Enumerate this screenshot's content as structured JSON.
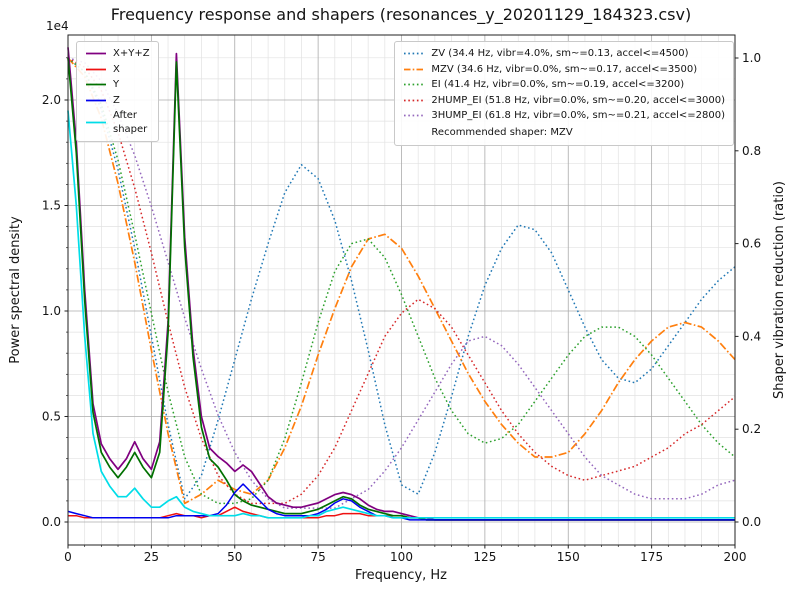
{
  "title": "Frequency response and shapers (resonances_y_20201129_184323.csv)",
  "axes": {
    "x_label": "Frequency, Hz",
    "y_left_label": "Power spectral density",
    "y_right_label": "Shaper vibration reduction (ratio)",
    "y_left_offset": "1e4",
    "x_ticks": [
      "0",
      "25",
      "50",
      "75",
      "100",
      "125",
      "150",
      "175",
      "200"
    ],
    "y_left_ticks": [
      "0.0",
      "0.5",
      "1.0",
      "1.5",
      "2.0"
    ],
    "y_right_ticks": [
      "0.0",
      "0.2",
      "0.4",
      "0.6",
      "0.8",
      "1.0"
    ]
  },
  "legend_psd": {
    "items": [
      {
        "label": "X+Y+Z",
        "color": "#800080",
        "dash": "solid"
      },
      {
        "label": "X",
        "color": "#ee1111",
        "dash": "solid"
      },
      {
        "label": "Y",
        "color": "#007000",
        "dash": "solid"
      },
      {
        "label": "Z",
        "color": "#0000ee",
        "dash": "solid"
      },
      {
        "label": "After\nshaper",
        "color": "#00dde8",
        "dash": "solid"
      }
    ]
  },
  "legend_shapers": {
    "items": [
      {
        "label": "ZV (34.4 Hz, vibr=4.0%, sm~=0.13, accel<=4500)",
        "color": "#1f77b4",
        "dash": "dotted"
      },
      {
        "label": "MZV (34.6 Hz, vibr=0.0%, sm~=0.17, accel<=3500)",
        "color": "#ff7f0e",
        "dash": "dashdot"
      },
      {
        "label": "EI (41.4 Hz, vibr=0.0%, sm~=0.19, accel<=3200)",
        "color": "#2ca02c",
        "dash": "dotted"
      },
      {
        "label": "2HUMP_EI (51.8 Hz, vibr=0.0%, sm~=0.20, accel<=3000)",
        "color": "#d62728",
        "dash": "dotted"
      },
      {
        "label": "3HUMP_EI (61.8 Hz, vibr=0.0%, sm~=0.21, accel<=2800)",
        "color": "#9467bd",
        "dash": "dotted"
      }
    ],
    "note": "Recommended shaper: MZV"
  },
  "chart_data": {
    "type": "line",
    "title": "Frequency response and shapers (resonances_y_20201129_184323.csv)",
    "xlabel": "Frequency, Hz",
    "ylabel_left": "Power spectral density (units of 1e4)",
    "ylabel_right": "Shaper vibration reduction (ratio)",
    "xlim": [
      0,
      200
    ],
    "ylim_left_1e4": [
      -0.13,
      2.3
    ],
    "ylim_right": [
      -0.06,
      1.06
    ],
    "grid": true,
    "legend_positions": [
      "upper left",
      "upper right"
    ],
    "series": [
      {
        "name": "ZV",
        "axis": "right",
        "color": "#1f77b4",
        "dash": "dotted",
        "width": 1.5,
        "x": [
          0,
          5,
          10,
          15,
          20,
          25,
          30,
          35,
          40,
          45,
          50,
          55,
          60,
          65,
          70,
          75,
          80,
          85,
          90,
          95,
          100,
          105,
          110,
          115,
          120,
          125,
          130,
          135,
          140,
          145,
          150,
          155,
          160,
          165,
          170,
          175,
          180,
          185,
          190,
          195,
          200
        ],
        "y": [
          1.0,
          0.97,
          0.89,
          0.76,
          0.59,
          0.4,
          0.21,
          0.05,
          0.1,
          0.22,
          0.35,
          0.48,
          0.6,
          0.71,
          0.77,
          0.74,
          0.65,
          0.52,
          0.37,
          0.21,
          0.08,
          0.06,
          0.15,
          0.27,
          0.4,
          0.51,
          0.59,
          0.64,
          0.63,
          0.58,
          0.5,
          0.42,
          0.35,
          0.31,
          0.3,
          0.33,
          0.38,
          0.43,
          0.48,
          0.52,
          0.55
        ]
      },
      {
        "name": "MZV",
        "axis": "right",
        "color": "#ff7f0e",
        "dash": "dashdot",
        "width": 1.7,
        "x": [
          0,
          5,
          10,
          15,
          20,
          25,
          30,
          35,
          40,
          45,
          50,
          55,
          60,
          65,
          70,
          75,
          80,
          85,
          90,
          95,
          100,
          105,
          110,
          115,
          120,
          125,
          130,
          135,
          140,
          145,
          150,
          155,
          160,
          165,
          170,
          175,
          180,
          185,
          190,
          195,
          200
        ],
        "y": [
          1.0,
          0.96,
          0.87,
          0.73,
          0.56,
          0.37,
          0.19,
          0.04,
          0.06,
          0.09,
          0.07,
          0.06,
          0.09,
          0.16,
          0.25,
          0.36,
          0.46,
          0.55,
          0.61,
          0.62,
          0.59,
          0.53,
          0.46,
          0.39,
          0.32,
          0.26,
          0.21,
          0.17,
          0.14,
          0.14,
          0.15,
          0.19,
          0.24,
          0.3,
          0.35,
          0.39,
          0.42,
          0.43,
          0.42,
          0.39,
          0.35
        ]
      },
      {
        "name": "EI",
        "axis": "right",
        "color": "#2ca02c",
        "dash": "dotted",
        "width": 1.5,
        "x": [
          0,
          5,
          10,
          15,
          20,
          25,
          30,
          35,
          40,
          45,
          50,
          55,
          60,
          65,
          70,
          75,
          80,
          85,
          90,
          95,
          100,
          105,
          110,
          115,
          120,
          125,
          130,
          135,
          140,
          145,
          150,
          155,
          160,
          165,
          170,
          175,
          180,
          185,
          190,
          195,
          200
        ],
        "y": [
          1.0,
          0.97,
          0.9,
          0.78,
          0.62,
          0.45,
          0.28,
          0.14,
          0.06,
          0.04,
          0.04,
          0.05,
          0.09,
          0.18,
          0.3,
          0.43,
          0.54,
          0.6,
          0.61,
          0.57,
          0.49,
          0.4,
          0.31,
          0.24,
          0.19,
          0.17,
          0.18,
          0.21,
          0.26,
          0.31,
          0.36,
          0.4,
          0.42,
          0.42,
          0.4,
          0.36,
          0.31,
          0.26,
          0.21,
          0.17,
          0.14
        ]
      },
      {
        "name": "2HUMP_EI",
        "axis": "right",
        "color": "#d62728",
        "dash": "dotted",
        "width": 1.5,
        "x": [
          0,
          5,
          10,
          15,
          20,
          25,
          30,
          35,
          40,
          45,
          50,
          55,
          60,
          65,
          70,
          75,
          80,
          85,
          90,
          95,
          100,
          105,
          110,
          115,
          120,
          125,
          130,
          135,
          140,
          145,
          150,
          155,
          160,
          165,
          170,
          175,
          180,
          185,
          190,
          195,
          200
        ],
        "y": [
          1.0,
          0.98,
          0.93,
          0.84,
          0.72,
          0.58,
          0.43,
          0.29,
          0.18,
          0.1,
          0.06,
          0.04,
          0.04,
          0.04,
          0.06,
          0.1,
          0.16,
          0.24,
          0.32,
          0.4,
          0.45,
          0.48,
          0.46,
          0.42,
          0.36,
          0.3,
          0.24,
          0.19,
          0.15,
          0.12,
          0.1,
          0.09,
          0.1,
          0.11,
          0.12,
          0.14,
          0.16,
          0.19,
          0.21,
          0.24,
          0.27
        ]
      },
      {
        "name": "3HUMP_EI",
        "axis": "right",
        "color": "#9467bd",
        "dash": "dotted",
        "width": 1.5,
        "x": [
          0,
          5,
          10,
          15,
          20,
          25,
          30,
          35,
          40,
          45,
          50,
          55,
          60,
          65,
          70,
          75,
          80,
          85,
          90,
          95,
          100,
          105,
          110,
          115,
          120,
          125,
          130,
          135,
          140,
          145,
          150,
          155,
          160,
          165,
          170,
          175,
          180,
          185,
          190,
          195,
          200
        ],
        "y": [
          1.0,
          0.99,
          0.95,
          0.88,
          0.79,
          0.68,
          0.56,
          0.44,
          0.33,
          0.23,
          0.15,
          0.09,
          0.05,
          0.03,
          0.03,
          0.03,
          0.03,
          0.05,
          0.07,
          0.11,
          0.16,
          0.22,
          0.28,
          0.34,
          0.39,
          0.4,
          0.38,
          0.34,
          0.29,
          0.24,
          0.19,
          0.14,
          0.1,
          0.08,
          0.06,
          0.05,
          0.05,
          0.05,
          0.06,
          0.08,
          0.09
        ]
      },
      {
        "name": "X+Y+Z",
        "axis": "left",
        "y_units": "1e4",
        "color": "#800080",
        "dash": "solid",
        "width": 1.7,
        "x": [
          0,
          2.5,
          5,
          7.5,
          10,
          12.5,
          15,
          17.5,
          20,
          22.5,
          25,
          27.5,
          30,
          32.5,
          35,
          37.5,
          40,
          42.5,
          45,
          47.5,
          50,
          52.5,
          55,
          57.5,
          60,
          62.5,
          65,
          67.5,
          70,
          72.5,
          75,
          77.5,
          80,
          82.5,
          85,
          87.5,
          90,
          92.5,
          95,
          97.5,
          100,
          102.5,
          105,
          107.5,
          110,
          120,
          140,
          160,
          180,
          200
        ],
        "y": [
          2.25,
          1.8,
          1.1,
          0.56,
          0.37,
          0.3,
          0.25,
          0.3,
          0.38,
          0.3,
          0.25,
          0.38,
          0.95,
          2.22,
          1.35,
          0.82,
          0.5,
          0.35,
          0.31,
          0.28,
          0.24,
          0.27,
          0.24,
          0.18,
          0.12,
          0.09,
          0.08,
          0.07,
          0.07,
          0.08,
          0.09,
          0.11,
          0.13,
          0.14,
          0.13,
          0.11,
          0.08,
          0.06,
          0.05,
          0.05,
          0.04,
          0.03,
          0.02,
          0.02,
          0.01,
          0.01,
          0.01,
          0.01,
          0.01,
          0.01
        ]
      },
      {
        "name": "X",
        "axis": "left",
        "y_units": "1e4",
        "color": "#ee1111",
        "dash": "solid",
        "width": 1.5,
        "x": [
          0,
          2.5,
          5,
          7.5,
          10,
          12.5,
          15,
          17.5,
          20,
          22.5,
          25,
          27.5,
          30,
          32.5,
          35,
          37.5,
          40,
          42.5,
          45,
          47.5,
          50,
          52.5,
          55,
          57.5,
          60,
          62.5,
          65,
          67.5,
          70,
          72.5,
          75,
          77.5,
          80,
          82.5,
          85,
          87.5,
          90,
          92.5,
          95,
          97.5,
          100,
          102.5,
          105,
          107.5,
          110,
          120,
          140,
          160,
          180,
          200
        ],
        "y": [
          0.03,
          0.03,
          0.02,
          0.02,
          0.02,
          0.02,
          0.02,
          0.02,
          0.02,
          0.02,
          0.02,
          0.02,
          0.03,
          0.04,
          0.03,
          0.03,
          0.02,
          0.03,
          0.03,
          0.05,
          0.07,
          0.05,
          0.04,
          0.03,
          0.02,
          0.02,
          0.02,
          0.02,
          0.02,
          0.02,
          0.02,
          0.03,
          0.03,
          0.04,
          0.04,
          0.04,
          0.03,
          0.03,
          0.03,
          0.03,
          0.03,
          0.02,
          0.02,
          0.01,
          0.01,
          0.01,
          0.01,
          0.01,
          0.01,
          0.01
        ]
      },
      {
        "name": "Y",
        "axis": "left",
        "y_units": "1e4",
        "color": "#007000",
        "dash": "solid",
        "width": 1.7,
        "x": [
          0,
          2.5,
          5,
          7.5,
          10,
          12.5,
          15,
          17.5,
          20,
          22.5,
          25,
          27.5,
          30,
          32.5,
          35,
          37.5,
          40,
          42.5,
          45,
          47.5,
          50,
          52.5,
          55,
          57.5,
          60,
          62.5,
          65,
          67.5,
          70,
          72.5,
          75,
          77.5,
          80,
          82.5,
          85,
          87.5,
          90,
          92.5,
          95,
          97.5,
          100,
          102.5,
          105,
          107.5,
          110,
          120,
          140,
          160,
          180,
          200
        ],
        "y": [
          2.2,
          1.75,
          1.05,
          0.52,
          0.33,
          0.26,
          0.21,
          0.26,
          0.33,
          0.26,
          0.21,
          0.33,
          0.9,
          2.18,
          1.3,
          0.78,
          0.45,
          0.3,
          0.26,
          0.2,
          0.13,
          0.1,
          0.08,
          0.07,
          0.06,
          0.05,
          0.04,
          0.04,
          0.04,
          0.05,
          0.06,
          0.08,
          0.1,
          0.12,
          0.11,
          0.08,
          0.06,
          0.05,
          0.04,
          0.03,
          0.03,
          0.02,
          0.02,
          0.01,
          0.01,
          0.01,
          0.01,
          0.01,
          0.01,
          0.01
        ]
      },
      {
        "name": "Z",
        "axis": "left",
        "y_units": "1e4",
        "color": "#0000ee",
        "dash": "solid",
        "width": 1.5,
        "x": [
          0,
          2.5,
          5,
          7.5,
          10,
          12.5,
          15,
          17.5,
          20,
          22.5,
          25,
          27.5,
          30,
          32.5,
          35,
          37.5,
          40,
          42.5,
          45,
          47.5,
          50,
          52.5,
          55,
          57.5,
          60,
          62.5,
          65,
          67.5,
          70,
          72.5,
          75,
          77.5,
          80,
          82.5,
          85,
          87.5,
          90,
          92.5,
          95,
          97.5,
          100,
          102.5,
          105,
          107.5,
          110,
          120,
          140,
          160,
          180,
          200
        ],
        "y": [
          0.05,
          0.04,
          0.03,
          0.02,
          0.02,
          0.02,
          0.02,
          0.02,
          0.02,
          0.02,
          0.02,
          0.02,
          0.02,
          0.03,
          0.03,
          0.03,
          0.03,
          0.03,
          0.04,
          0.08,
          0.14,
          0.18,
          0.14,
          0.1,
          0.06,
          0.04,
          0.03,
          0.03,
          0.03,
          0.03,
          0.04,
          0.06,
          0.09,
          0.11,
          0.1,
          0.07,
          0.05,
          0.03,
          0.03,
          0.02,
          0.02,
          0.01,
          0.01,
          0.01,
          0.01,
          0.01,
          0.01,
          0.01,
          0.01,
          0.01
        ]
      },
      {
        "name": "After shaper",
        "axis": "left",
        "y_units": "1e4",
        "color": "#00dde8",
        "dash": "solid",
        "width": 1.7,
        "x": [
          0,
          2.5,
          5,
          7.5,
          10,
          12.5,
          15,
          17.5,
          20,
          22.5,
          25,
          27.5,
          30,
          32.5,
          35,
          37.5,
          40,
          42.5,
          45,
          47.5,
          50,
          52.5,
          55,
          57.5,
          60,
          62.5,
          65,
          67.5,
          70,
          72.5,
          75,
          77.5,
          80,
          82.5,
          85,
          87.5,
          90,
          92.5,
          95,
          97.5,
          100,
          102.5,
          105,
          107.5,
          110,
          120,
          140,
          160,
          180,
          200
        ],
        "y": [
          1.95,
          1.5,
          0.88,
          0.42,
          0.24,
          0.17,
          0.12,
          0.12,
          0.16,
          0.11,
          0.07,
          0.07,
          0.1,
          0.12,
          0.07,
          0.05,
          0.04,
          0.03,
          0.03,
          0.03,
          0.03,
          0.04,
          0.03,
          0.03,
          0.02,
          0.02,
          0.02,
          0.02,
          0.02,
          0.03,
          0.03,
          0.05,
          0.06,
          0.07,
          0.06,
          0.05,
          0.04,
          0.03,
          0.03,
          0.02,
          0.02,
          0.02,
          0.02,
          0.02,
          0.02,
          0.02,
          0.02,
          0.02,
          0.02,
          0.02
        ]
      }
    ]
  }
}
